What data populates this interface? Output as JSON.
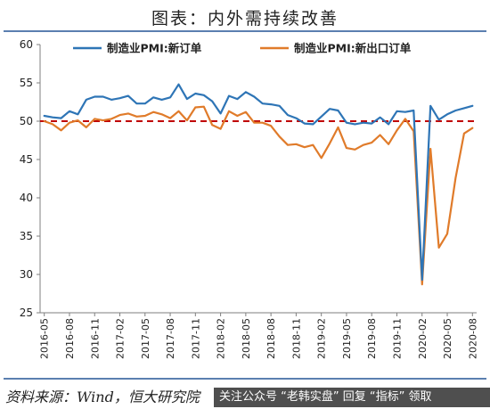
{
  "header": {
    "title": "图表：内外需持续改善"
  },
  "footer": {
    "source": "资料来源：Wind，恒大研究院"
  },
  "watermark": {
    "text": "关注公众号 “老韩实盘” 回复 “指标” 领取"
  },
  "colors": {
    "series1": "#2e75b6",
    "series2": "#e07b2a",
    "reference": "#c00000",
    "axis": "#7f7f7f"
  },
  "chart_data": {
    "type": "line",
    "x": [
      "2016-05",
      "2016-06",
      "2016-07",
      "2016-08",
      "2016-09",
      "2016-10",
      "2016-11",
      "2016-12",
      "2017-01",
      "2017-02",
      "2017-03",
      "2017-04",
      "2017-05",
      "2017-06",
      "2017-07",
      "2017-08",
      "2017-09",
      "2017-10",
      "2017-11",
      "2017-12",
      "2018-01",
      "2018-02",
      "2018-03",
      "2018-04",
      "2018-05",
      "2018-06",
      "2018-07",
      "2018-08",
      "2018-09",
      "2018-10",
      "2018-11",
      "2018-12",
      "2019-01",
      "2019-02",
      "2019-03",
      "2019-04",
      "2019-05",
      "2019-06",
      "2019-07",
      "2019-08",
      "2019-09",
      "2019-10",
      "2019-11",
      "2019-12",
      "2020-01",
      "2020-02",
      "2020-03",
      "2020-04",
      "2020-05",
      "2020-06",
      "2020-07",
      "2020-08"
    ],
    "xticks": [
      "2016-05",
      "2016-08",
      "2016-11",
      "2017-02",
      "2017-05",
      "2017-08",
      "2017-11",
      "2018-02",
      "2018-05",
      "2018-08",
      "2018-11",
      "2019-02",
      "2019-05",
      "2019-08",
      "2019-11",
      "2020-02",
      "2020-05",
      "2020-08"
    ],
    "series": [
      {
        "name": "制造业PMI:新订单",
        "values": [
          50.7,
          50.5,
          50.4,
          51.3,
          50.9,
          52.8,
          53.2,
          53.2,
          52.8,
          53.0,
          53.3,
          52.3,
          52.3,
          53.1,
          52.8,
          53.1,
          54.8,
          52.9,
          53.6,
          53.4,
          52.6,
          51.0,
          53.3,
          52.9,
          53.8,
          53.2,
          52.3,
          52.2,
          52.0,
          50.8,
          50.4,
          49.7,
          49.6,
          50.6,
          51.6,
          51.4,
          49.8,
          49.6,
          49.8,
          49.7,
          50.5,
          49.6,
          51.3,
          51.2,
          51.4,
          29.3,
          52.0,
          50.2,
          50.9,
          51.4,
          51.7,
          52.0
        ]
      },
      {
        "name": "制造业PMI:新出口订单",
        "values": [
          50.0,
          49.6,
          48.8,
          49.8,
          50.1,
          49.2,
          50.3,
          50.1,
          50.3,
          50.8,
          51.0,
          50.6,
          50.7,
          51.2,
          50.9,
          50.4,
          51.3,
          50.1,
          51.8,
          51.9,
          49.5,
          49.0,
          51.3,
          50.7,
          51.2,
          49.8,
          49.8,
          49.4,
          48.0,
          46.9,
          47.0,
          46.6,
          46.9,
          45.2,
          47.1,
          49.2,
          46.5,
          46.3,
          46.9,
          47.2,
          48.2,
          47.0,
          48.8,
          50.3,
          48.7,
          28.7,
          46.4,
          33.5,
          35.3,
          42.6,
          48.4,
          49.1
        ]
      }
    ],
    "reference_line": 50,
    "ylim": [
      25,
      60
    ],
    "yticks": [
      25,
      30,
      35,
      40,
      45,
      50,
      55,
      60
    ],
    "xlabel": "",
    "ylabel": "",
    "legend": "top-center",
    "grid": false
  }
}
